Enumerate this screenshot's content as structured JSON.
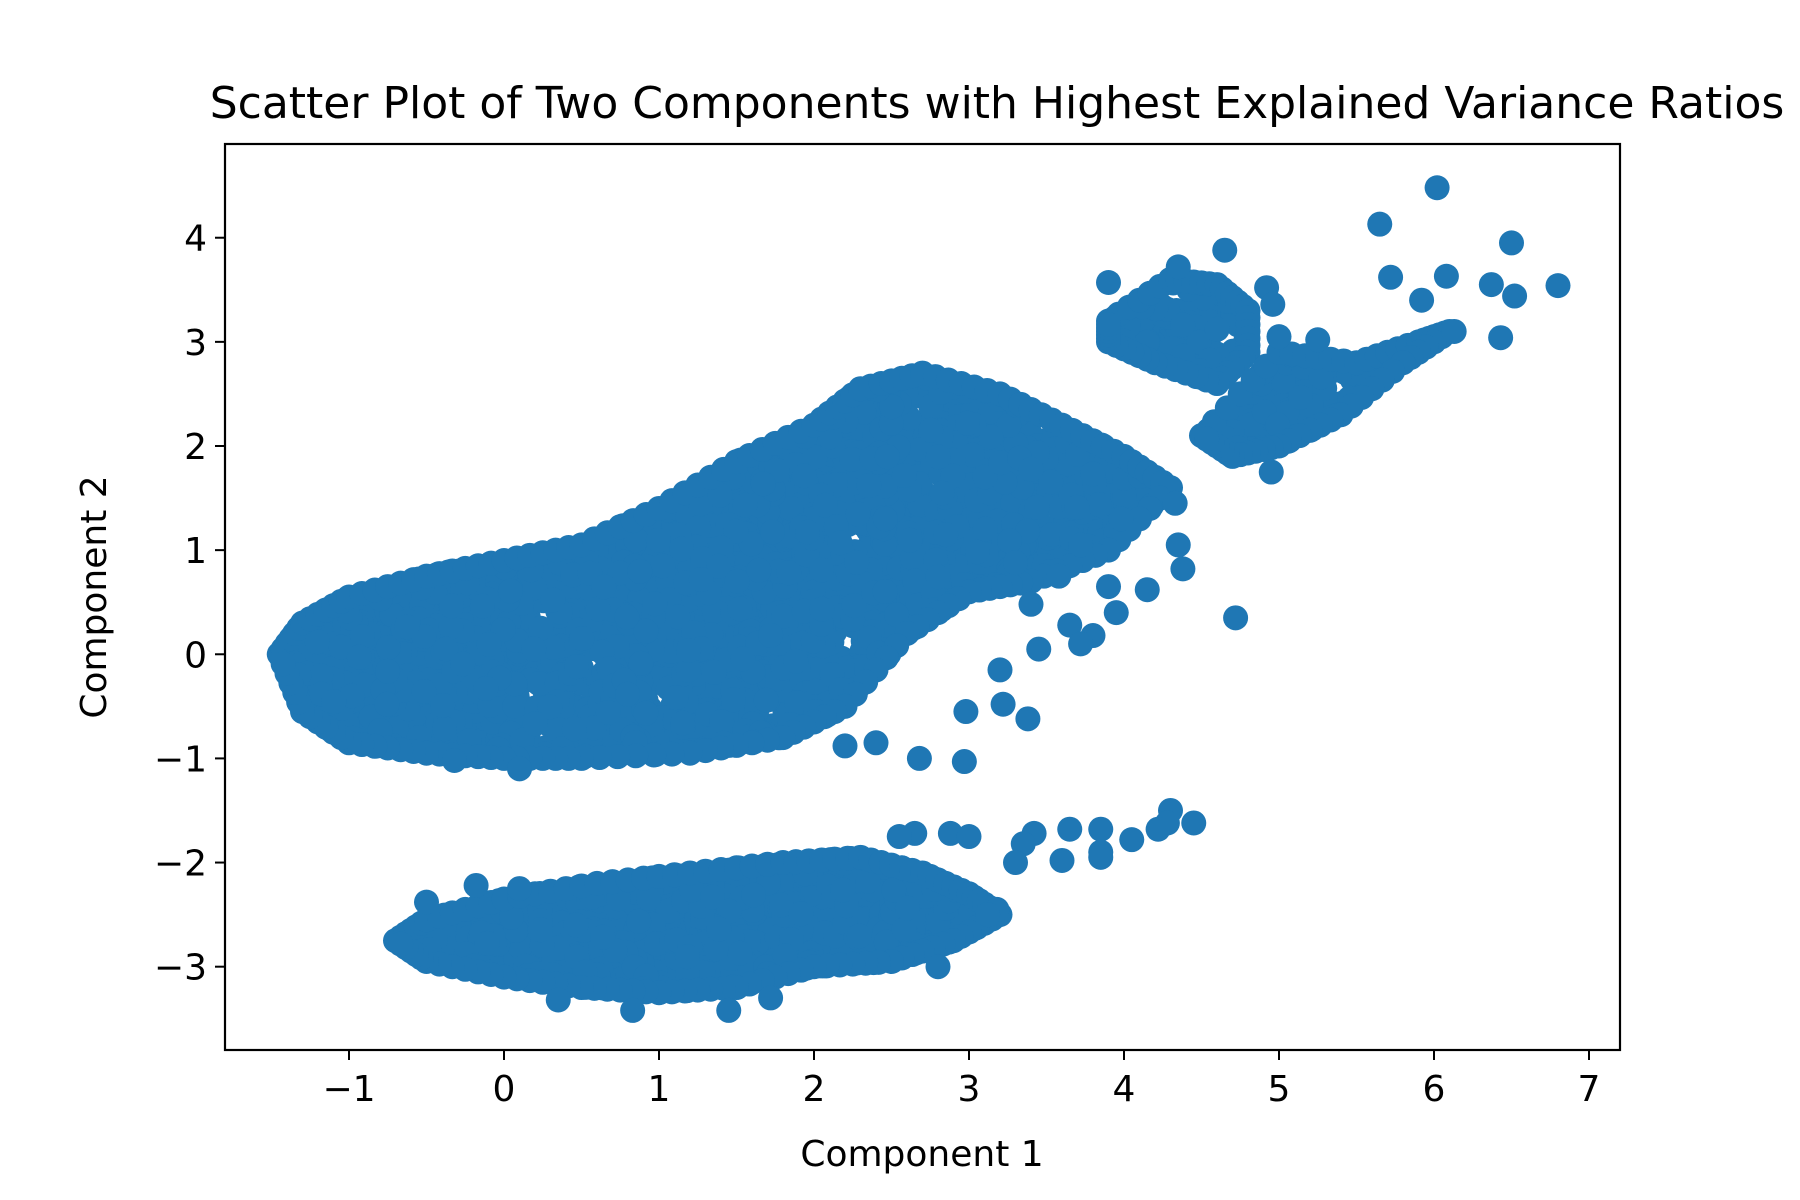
{
  "chart_data": {
    "type": "scatter",
    "title": "Scatter Plot of Two Components with Highest Explained Variance Ratios",
    "xlabel": "Component 1",
    "ylabel": "Component 2",
    "xlim": [
      -1.8,
      7.2
    ],
    "ylim": [
      -3.8,
      4.9
    ],
    "xticks": [
      -1,
      0,
      1,
      2,
      3,
      4,
      5,
      6,
      7
    ],
    "xtick_labels": [
      "−1",
      "0",
      "1",
      "2",
      "3",
      "4",
      "5",
      "6",
      "7"
    ],
    "yticks": [
      -3,
      -2,
      -1,
      0,
      1,
      2,
      3,
      4
    ],
    "ytick_labels": [
      "−3",
      "−2",
      "−1",
      "0",
      "1",
      "2",
      "3",
      "4"
    ],
    "grid": false,
    "marker_color": "#1f77b4",
    "series": [
      {
        "name": "",
        "clusters": [
          {
            "polygon": [
              [
                -1.45,
                0.0
              ],
              [
                -1.3,
                0.3
              ],
              [
                -1.0,
                0.55
              ],
              [
                -0.5,
                0.75
              ],
              [
                0.0,
                0.9
              ],
              [
                0.5,
                1.05
              ],
              [
                1.0,
                1.4
              ],
              [
                1.5,
                1.85
              ],
              [
                2.0,
                2.2
              ],
              [
                2.3,
                2.55
              ],
              [
                2.7,
                2.7
              ],
              [
                3.2,
                2.5
              ],
              [
                3.6,
                2.2
              ],
              [
                4.0,
                1.9
              ],
              [
                4.3,
                1.6
              ],
              [
                3.9,
                1.0
              ],
              [
                3.4,
                0.7
              ],
              [
                3.0,
                0.6
              ],
              [
                2.6,
                0.2
              ],
              [
                2.2,
                -0.5
              ],
              [
                1.8,
                -0.8
              ],
              [
                1.2,
                -0.95
              ],
              [
                0.5,
                -1.0
              ],
              [
                0.0,
                -1.0
              ],
              [
                -0.5,
                -0.95
              ],
              [
                -1.0,
                -0.85
              ],
              [
                -1.3,
                -0.55
              ]
            ],
            "count": 2600
          },
          {
            "polygon": [
              [
                -0.7,
                -2.75
              ],
              [
                -0.5,
                -2.55
              ],
              [
                0.0,
                -2.35
              ],
              [
                0.6,
                -2.2
              ],
              [
                1.2,
                -2.1
              ],
              [
                1.8,
                -2.0
              ],
              [
                2.3,
                -1.95
              ],
              [
                2.7,
                -2.1
              ],
              [
                3.0,
                -2.3
              ],
              [
                3.2,
                -2.5
              ],
              [
                2.9,
                -2.75
              ],
              [
                2.5,
                -2.95
              ],
              [
                2.0,
                -3.0
              ],
              [
                1.5,
                -3.2
              ],
              [
                1.0,
                -3.25
              ],
              [
                0.5,
                -3.2
              ],
              [
                0.0,
                -3.1
              ],
              [
                -0.5,
                -2.95
              ]
            ],
            "count": 1700
          },
          {
            "polygon": [
              [
                3.9,
                3.2
              ],
              [
                4.3,
                3.6
              ],
              [
                4.6,
                3.55
              ],
              [
                4.8,
                3.3
              ],
              [
                4.8,
                2.9
              ],
              [
                4.6,
                2.6
              ],
              [
                4.2,
                2.8
              ],
              [
                3.9,
                3.0
              ]
            ],
            "count": 90
          },
          {
            "polygon": [
              [
                4.5,
                2.1
              ],
              [
                5.0,
                2.9
              ],
              [
                5.5,
                2.8
              ],
              [
                5.9,
                3.0
              ],
              [
                6.1,
                3.1
              ],
              [
                5.8,
                2.8
              ],
              [
                5.4,
                2.3
              ],
              [
                5.0,
                2.0
              ],
              [
                4.7,
                1.9
              ]
            ],
            "count": 120
          }
        ],
        "points": [
          [
            6.02,
            4.48
          ],
          [
            5.65,
            4.13
          ],
          [
            6.5,
            3.95
          ],
          [
            5.72,
            3.62
          ],
          [
            6.08,
            3.63
          ],
          [
            6.37,
            3.55
          ],
          [
            6.8,
            3.54
          ],
          [
            6.52,
            3.44
          ],
          [
            5.92,
            3.4
          ],
          [
            6.13,
            3.1
          ],
          [
            6.43,
            3.04
          ],
          [
            4.65,
            3.88
          ],
          [
            4.35,
            3.72
          ],
          [
            3.9,
            3.57
          ],
          [
            4.92,
            3.52
          ],
          [
            4.96,
            3.36
          ],
          [
            5.0,
            3.05
          ],
          [
            5.25,
            3.02
          ],
          [
            4.95,
            1.75
          ],
          [
            4.72,
            0.35
          ],
          [
            4.35,
            1.05
          ],
          [
            4.38,
            0.82
          ],
          [
            4.33,
            1.45
          ],
          [
            3.98,
            1.3
          ],
          [
            3.3,
            0.88
          ],
          [
            3.4,
            0.48
          ],
          [
            3.45,
            0.05
          ],
          [
            3.65,
            0.28
          ],
          [
            3.8,
            0.18
          ],
          [
            3.72,
            0.1
          ],
          [
            3.95,
            0.4
          ],
          [
            3.9,
            0.65
          ],
          [
            4.15,
            0.62
          ],
          [
            3.72,
            1.05
          ],
          [
            3.58,
            0.75
          ],
          [
            3.2,
            -0.15
          ],
          [
            3.22,
            -0.48
          ],
          [
            3.38,
            -0.62
          ],
          [
            2.98,
            -0.55
          ],
          [
            2.68,
            -1.0
          ],
          [
            2.97,
            -1.03
          ],
          [
            2.2,
            -0.88
          ],
          [
            2.4,
            -0.85
          ],
          [
            4.3,
            -1.5
          ],
          [
            4.45,
            -1.62
          ],
          [
            4.28,
            -1.62
          ],
          [
            4.22,
            -1.68
          ],
          [
            4.05,
            -1.78
          ],
          [
            3.85,
            -1.68
          ],
          [
            3.65,
            -1.68
          ],
          [
            3.42,
            -1.72
          ],
          [
            3.35,
            -1.82
          ],
          [
            3.85,
            -1.9
          ],
          [
            3.85,
            -1.95
          ],
          [
            3.6,
            -1.98
          ],
          [
            2.65,
            -1.72
          ],
          [
            2.55,
            -1.75
          ],
          [
            2.88,
            -1.72
          ],
          [
            3.0,
            -1.75
          ],
          [
            3.3,
            -2.0
          ],
          [
            3.18,
            -2.45
          ],
          [
            3.12,
            -2.5
          ],
          [
            2.8,
            -3.0
          ],
          [
            -0.5,
            -2.38
          ],
          [
            -0.18,
            -2.22
          ],
          [
            0.1,
            -2.25
          ],
          [
            0.35,
            -3.32
          ],
          [
            0.83,
            -3.42
          ],
          [
            1.45,
            -3.42
          ],
          [
            1.72,
            -3.3
          ],
          [
            -0.32,
            -1.02
          ],
          [
            0.1,
            -1.1
          ]
        ]
      }
    ]
  }
}
